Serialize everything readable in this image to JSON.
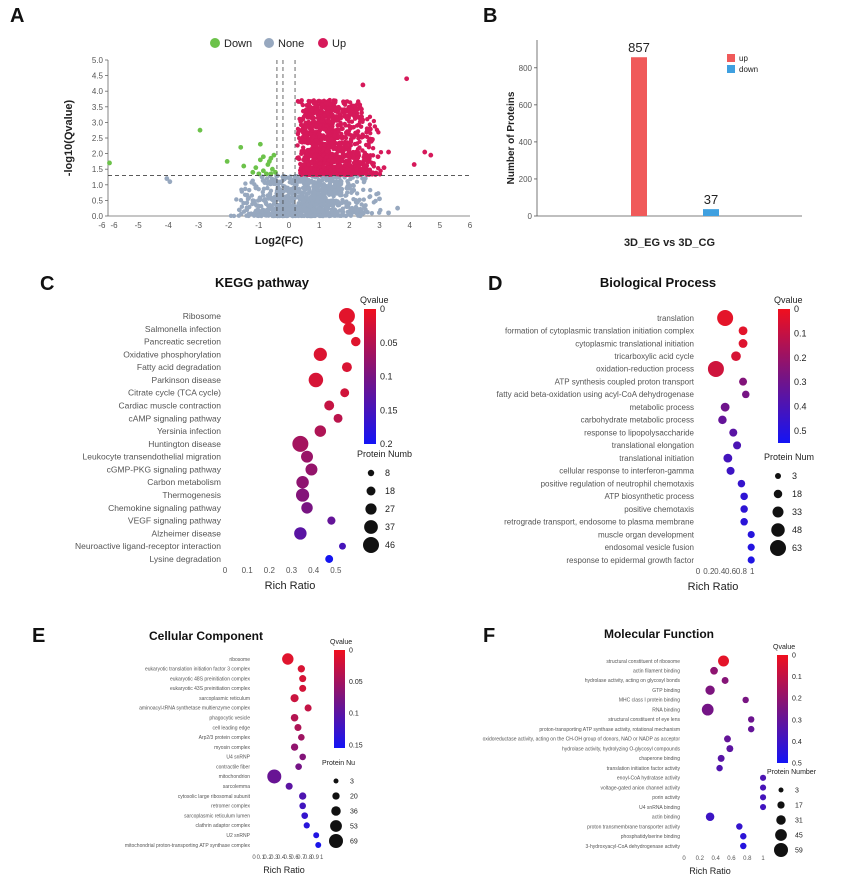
{
  "chart_data": [
    {
      "id": "A",
      "panel_letter": "A",
      "type": "scatter",
      "title": "",
      "xlabel": "Log2(FC)",
      "ylabel": "-log10(Qvalue)",
      "xlim": [
        -6,
        6
      ],
      "ylim": [
        0,
        5
      ],
      "x_ticks": [
        "-6",
        "-6",
        "-5",
        "-4",
        "-3",
        "-2",
        "-1",
        "0",
        "1",
        "2",
        "3",
        "4",
        "5",
        "6"
      ],
      "y_ticks": [
        "0.0",
        "0.5",
        "1.0",
        "1.5",
        "2.0",
        "2.5",
        "3.0",
        "3.5",
        "4.0",
        "4.5",
        "5.0"
      ],
      "threshold_y": 1.3,
      "threshold_x": [
        -0.4,
        -0.2,
        0.2
      ],
      "legend_position": "top",
      "legend": [
        {
          "name": "Down",
          "color": "#6cc24a"
        },
        {
          "name": "None",
          "color": "#97a8bf"
        },
        {
          "name": "Up",
          "color": "#d6195a"
        }
      ],
      "series": [
        {
          "name": "Down",
          "color": "#6cc24a",
          "points": [
            [
              -5.95,
              1.7
            ],
            [
              -2.95,
              2.75
            ],
            [
              -2.05,
              1.75
            ],
            [
              -1.6,
              2.2
            ],
            [
              -1.5,
              1.6
            ],
            [
              -1.2,
              1.4
            ],
            [
              -1.1,
              1.55
            ],
            [
              -0.95,
              1.8
            ],
            [
              -0.85,
              1.45
            ],
            [
              -0.7,
              1.65
            ],
            [
              -0.6,
              1.35
            ],
            [
              -0.55,
              1.5
            ],
            [
              -0.5,
              1.95
            ],
            [
              -0.45,
              1.4
            ],
            [
              -0.85,
              1.9
            ],
            [
              -0.75,
              1.35
            ],
            [
              -0.65,
              1.75
            ],
            [
              -1.0,
              1.35
            ],
            [
              -0.95,
              2.3
            ],
            [
              -0.6,
              1.85
            ]
          ]
        },
        {
          "name": "None",
          "color": "#97a8bf",
          "points": [
            [
              -4.05,
              1.2
            ],
            [
              -3.95,
              1.1
            ],
            [
              -1.4,
              0.2
            ],
            [
              -1.1,
              0.9
            ],
            [
              3.0,
              0.55
            ],
            [
              3.3,
              0.1
            ],
            [
              3.6,
              0.25
            ]
          ]
        },
        {
          "name": "Up",
          "color": "#d6195a",
          "points": [
            [
              3.9,
              4.4
            ],
            [
              4.5,
              2.05
            ],
            [
              4.15,
              1.65
            ],
            [
              4.7,
              1.95
            ],
            [
              2.45,
              4.2
            ],
            [
              2.95,
              1.9
            ],
            [
              3.15,
              1.55
            ],
            [
              3.3,
              2.05
            ]
          ]
        }
      ]
    },
    {
      "id": "B",
      "panel_letter": "B",
      "type": "bar",
      "title": "",
      "xlabel": "3D_EG vs 3D_CG",
      "ylabel": "Number of Proteins",
      "ylim": [
        0,
        950
      ],
      "y_ticks": [
        "0",
        "200",
        "400",
        "600",
        "800"
      ],
      "legend_position": "top-right",
      "series": [
        {
          "name": "up",
          "color": "#f05a5a",
          "value": 857,
          "label": "857"
        },
        {
          "name": "down",
          "color": "#3fa0e0",
          "value": 37,
          "label": "37"
        }
      ]
    },
    {
      "id": "C",
      "panel_letter": "C",
      "type": "scatter",
      "title": "KEGG pathway",
      "xlabel": "Rich Ratio",
      "x_ticks": [
        "0",
        "0.1",
        "0.2",
        "0.3",
        "0.4",
        "0.5"
      ],
      "xlim": [
        0,
        0.6
      ],
      "legend_color_title": "Qvalue",
      "color_ticks": [
        "0",
        "0.05",
        "0.1",
        "0.15",
        "0.2"
      ],
      "color_range": [
        0,
        0.2
      ],
      "legend_size_title": "Protein Numb",
      "size_ticks": [
        "8",
        "18",
        "27",
        "37",
        "46"
      ],
      "size_range": [
        8,
        46
      ],
      "categories": [
        "Ribosome",
        "Salmonella infection",
        "Pancreatic secretion",
        "Oxidative phosphorylation",
        "Fatty acid degradation",
        "Parkinson disease",
        "Citrate cycle (TCA cycle)",
        "Cardiac muscle contraction",
        "cAMP signaling pathway",
        "Yersinia infection",
        "Huntington disease",
        "Leukocyte transendothelial migration",
        "cGMP-PKG signaling pathway",
        "Carbon metabolism",
        "Thermogenesis",
        "Chemokine signaling pathway",
        "VEGF signaling pathway",
        "Alzheimer disease",
        "Neuroactive ligand-receptor interaction",
        "Lysine degradation"
      ],
      "rich_ratio": [
        0.55,
        0.56,
        0.59,
        0.43,
        0.55,
        0.41,
        0.54,
        0.47,
        0.51,
        0.43,
        0.34,
        0.37,
        0.39,
        0.35,
        0.35,
        0.37,
        0.48,
        0.34,
        0.53,
        0.47
      ],
      "qvalue": [
        0.004,
        0.005,
        0.006,
        0.01,
        0.012,
        0.015,
        0.02,
        0.03,
        0.04,
        0.05,
        0.06,
        0.07,
        0.075,
        0.08,
        0.09,
        0.1,
        0.12,
        0.13,
        0.15,
        0.2
      ],
      "protein_number": [
        46,
        30,
        20,
        35,
        22,
        40,
        18,
        22,
        18,
        28,
        46,
        30,
        30,
        32,
        35,
        28,
        15,
        32,
        10,
        14
      ]
    },
    {
      "id": "D",
      "panel_letter": "D",
      "type": "scatter",
      "title": "Biological Process",
      "xlabel": "Rich Ratio",
      "x_ticks": [
        "0",
        "0.2",
        "0.4",
        "0.6",
        "0.8",
        "1"
      ],
      "xlim": [
        0,
        1.05
      ],
      "legend_color_title": "Qvalue",
      "color_ticks": [
        "0",
        "0.1",
        "0.2",
        "0.3",
        "0.4",
        "0.5"
      ],
      "color_range": [
        0,
        0.55
      ],
      "legend_size_title": "Protein Num",
      "size_ticks": [
        "3",
        "18",
        "33",
        "48",
        "63"
      ],
      "size_range": [
        3,
        63
      ],
      "categories": [
        "translation",
        "formation of cytoplasmic translation initiation complex",
        "cytoplasmic translational initiation",
        "tricarboxylic acid cycle",
        "oxidation-reduction process",
        "ATP synthesis coupled proton transport",
        "fatty acid beta-oxidation using acyl-CoA dehydrogenase",
        "metabolic process",
        "carbohydrate metabolic process",
        "response to lipopolysaccharide",
        "translational elongation",
        "translational initiation",
        "cellular response to interferon-gamma",
        "positive regulation of neutrophil chemotaxis",
        "ATP biosynthetic process",
        "positive chemotaxis",
        "retrograde transport, endosome to plasma membrane",
        "muscle organ development",
        "endosomal vesicle fusion",
        "response to epidermal growth factor"
      ],
      "rich_ratio": [
        0.5,
        0.83,
        0.83,
        0.7,
        0.33,
        0.83,
        0.88,
        0.5,
        0.45,
        0.65,
        0.72,
        0.55,
        0.6,
        0.8,
        0.85,
        0.85,
        0.85,
        0.98,
        0.98,
        0.98
      ],
      "qvalue": [
        0.004,
        0.01,
        0.02,
        0.04,
        0.06,
        0.25,
        0.28,
        0.3,
        0.33,
        0.36,
        0.4,
        0.42,
        0.44,
        0.46,
        0.48,
        0.48,
        0.49,
        0.5,
        0.51,
        0.52
      ],
      "protein_number": [
        63,
        20,
        20,
        25,
        63,
        15,
        12,
        20,
        18,
        15,
        15,
        20,
        15,
        12,
        12,
        12,
        12,
        10,
        10,
        10
      ]
    },
    {
      "id": "E",
      "panel_letter": "E",
      "type": "scatter",
      "title": "Cellular Component",
      "xlabel": "Rich Ratio",
      "x_ticks": [
        "0",
        "0.1",
        "0.2",
        "0.3",
        "0.4",
        "0.5",
        "0.6",
        "0.7",
        "0.8",
        "0.9",
        "1"
      ],
      "xlim": [
        0,
        1.05
      ],
      "legend_color_title": "Qvalue",
      "color_ticks": [
        "0",
        "0.05",
        "0.1",
        "0.15"
      ],
      "color_range": [
        0,
        0.155
      ],
      "legend_size_title": "Protein Nu",
      "size_ticks": [
        "3",
        "20",
        "36",
        "53",
        "69"
      ],
      "size_range": [
        3,
        69
      ],
      "categories": [
        "ribosome",
        "eukaryotic translation initiation factor 3 complex",
        "eukaryotic 48S preinitiation complex",
        "eukaryotic 43S preinitiation complex",
        "sarcoplasmic reticulum",
        "aminoacyl-tRNA synthetase multienzyme complex",
        "phagocytic vesicle",
        "cell leading edge",
        "Arp2/3 protein complex",
        "myosin complex",
        "U4 snRNP",
        "contractile fiber",
        "mitochondrion",
        "sarcolemma",
        "cytosolic large ribosomal subunit",
        "retromer complex",
        "sarcoplasmic reticulum lumen",
        "clathrin adaptor complex",
        "U2 snRNP",
        "mitochondrial proton-transporting ATP synthase complex"
      ],
      "rich_ratio": [
        0.5,
        0.7,
        0.72,
        0.72,
        0.6,
        0.8,
        0.6,
        0.65,
        0.7,
        0.6,
        0.72,
        0.66,
        0.3,
        0.52,
        0.72,
        0.72,
        0.75,
        0.78,
        0.92,
        0.95
      ],
      "qvalue": [
        0.004,
        0.01,
        0.012,
        0.014,
        0.02,
        0.025,
        0.035,
        0.04,
        0.05,
        0.06,
        0.07,
        0.08,
        0.09,
        0.1,
        0.11,
        0.12,
        0.13,
        0.14,
        0.145,
        0.15
      ],
      "protein_number": [
        50,
        20,
        18,
        18,
        26,
        18,
        22,
        18,
        15,
        20,
        15,
        15,
        69,
        18,
        20,
        15,
        15,
        12,
        10,
        10
      ]
    },
    {
      "id": "F",
      "panel_letter": "F",
      "type": "scatter",
      "title": "Molecular Function",
      "xlabel": "Rich Ratio",
      "x_ticks": [
        "0",
        "0.2",
        "0.4",
        "0.6",
        "0.8",
        "1"
      ],
      "xlim": [
        0,
        1.05
      ],
      "legend_color_title": "Qvalue",
      "color_ticks": [
        "0",
        "0.1",
        "0.2",
        "0.3",
        "0.4",
        "0.5"
      ],
      "color_range": [
        0,
        0.5
      ],
      "legend_size_title": "Protein Number",
      "size_ticks": [
        "3",
        "17",
        "31",
        "45",
        "59"
      ],
      "size_range": [
        3,
        59
      ],
      "categories": [
        "structural constituent of ribosome",
        "actin filament binding",
        "hydrolase activity, acting on glycosyl bonds",
        "GTP binding",
        "MHC class I protein binding",
        "RNA binding",
        "structural constituent of eye lens",
        "proton-transporting ATP synthase activity, rotational mechanism",
        "oxidoreductase activity, acting on the CH-OH group of donors, NAD or NADP as acceptor",
        "hydrolase activity, hydrolyzing O-glycosyl compounds",
        "chaperone binding",
        "translation initiation factor activity",
        "enoyl-CoA hydratase activity",
        "voltage-gated anion channel activity",
        "porin activity",
        "U4 snRNA binding",
        "actin binding",
        "proton transmembrane transporter activity",
        "phosphatidylserine binding",
        "3-hydroxyacyl-CoA dehydrogenase activity"
      ],
      "rich_ratio": [
        0.5,
        0.38,
        0.52,
        0.33,
        0.78,
        0.3,
        0.85,
        0.85,
        0.55,
        0.58,
        0.47,
        0.45,
        1.0,
        1.0,
        1.0,
        1.0,
        0.33,
        0.7,
        0.75,
        0.75
      ],
      "qvalue": [
        0.004,
        0.2,
        0.22,
        0.24,
        0.25,
        0.26,
        0.28,
        0.3,
        0.3,
        0.32,
        0.33,
        0.35,
        0.36,
        0.37,
        0.38,
        0.39,
        0.4,
        0.42,
        0.44,
        0.46
      ],
      "protein_number": [
        40,
        20,
        15,
        30,
        12,
        45,
        12,
        12,
        15,
        15,
        15,
        12,
        10,
        10,
        10,
        10,
        25,
        12,
        12,
        12
      ]
    }
  ]
}
